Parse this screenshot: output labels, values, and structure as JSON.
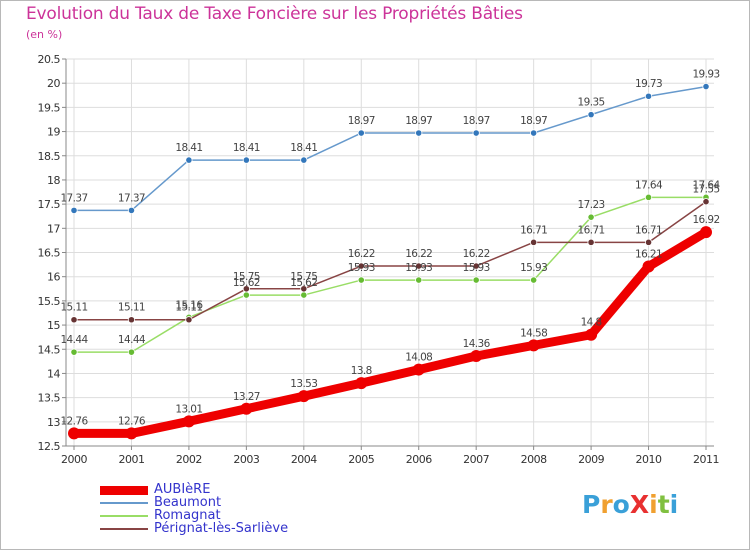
{
  "title": "Evolution du Taux de Taxe Foncière sur les Propriétés Bâties",
  "unit_label": "(en %)",
  "logo": {
    "text": "ProXiti",
    "letter_colors": [
      "#3aa0d8",
      "#f0a030",
      "#3aa0d8",
      "#e83030",
      "#f0a030",
      "#80c040",
      "#3aa0d8"
    ]
  },
  "colors": {
    "grid": "#dddddd",
    "axis": "#888888",
    "tick_text": "#333333",
    "data_label": "#444444"
  },
  "chart_data": {
    "type": "line",
    "title": "Evolution du Taux de Taxe Foncière sur les Propriétés Bâties",
    "ylabel": "(en %)",
    "xlabel": "",
    "x": [
      "2000",
      "2001",
      "2002",
      "2003",
      "2004",
      "2005",
      "2006",
      "2007",
      "2008",
      "2009",
      "2010",
      "2011"
    ],
    "ylim": [
      12.5,
      20.5
    ],
    "yticks": [
      "12.5",
      "13",
      "13.5",
      "14",
      "14.5",
      "15",
      "15.5",
      "16",
      "16.5",
      "17",
      "17.5",
      "18",
      "18.5",
      "19",
      "19.5",
      "20",
      "20.5"
    ],
    "grid": true,
    "legend_position": "bottom-left",
    "series": [
      {
        "name": "Beaumont",
        "color": "#6699cc",
        "marker": "#3377bb",
        "values": [
          17.37,
          17.37,
          18.41,
          18.41,
          18.41,
          18.97,
          18.97,
          18.97,
          18.97,
          19.35,
          19.73,
          19.93
        ],
        "labels": [
          "17.37",
          "17.37",
          "18.41",
          "18.41",
          "18.41",
          "18.97",
          "18.97",
          "18.97",
          "18.97",
          "19.35",
          "19.73",
          "19.93"
        ]
      },
      {
        "name": "Romagnat",
        "color": "#99dd66",
        "marker": "#66bb33",
        "values": [
          14.44,
          14.44,
          15.16,
          15.62,
          15.62,
          15.93,
          15.93,
          15.93,
          15.93,
          17.23,
          17.64,
          17.64
        ],
        "labels": [
          "14.44",
          "14.44",
          "15.16",
          "15.62",
          "15.62",
          "15.93",
          "15.93",
          "15.93",
          "15.93",
          "17.23",
          "17.64",
          "17.64"
        ]
      },
      {
        "name": "Pérignat-lès-Sarliève",
        "color": "#884444",
        "marker": "#663333",
        "values": [
          15.11,
          15.11,
          15.11,
          15.75,
          15.75,
          16.22,
          16.22,
          16.22,
          16.71,
          16.71,
          16.71,
          17.55
        ],
        "labels": [
          "15.11",
          "15.11",
          "15.11",
          "15.75",
          "15.75",
          "16.22",
          "16.22",
          "16.22",
          "16.71",
          "16.71",
          "16.71",
          "17.55"
        ]
      },
      {
        "name": "AUBIèRE",
        "color": "#ee0000",
        "marker": "#ee0000",
        "bold": true,
        "values": [
          12.76,
          12.76,
          13.01,
          13.27,
          13.53,
          13.8,
          14.08,
          14.36,
          14.58,
          14.8,
          16.21,
          16.92
        ],
        "labels": [
          "12.76",
          "12.76",
          "13.01",
          "13.27",
          "13.53",
          "13.8",
          "14.08",
          "14.36",
          "14.58",
          "14.8",
          "16.21",
          "16.92"
        ]
      }
    ]
  },
  "legend": [
    {
      "name": "AUBIèRE",
      "color": "#ee0000",
      "bold": true
    },
    {
      "name": "Beaumont",
      "color": "#6699cc",
      "bold": false
    },
    {
      "name": "Romagnat",
      "color": "#99dd66",
      "bold": false
    },
    {
      "name": "Pérignat-lès-Sarliève",
      "color": "#884444",
      "bold": false
    }
  ]
}
